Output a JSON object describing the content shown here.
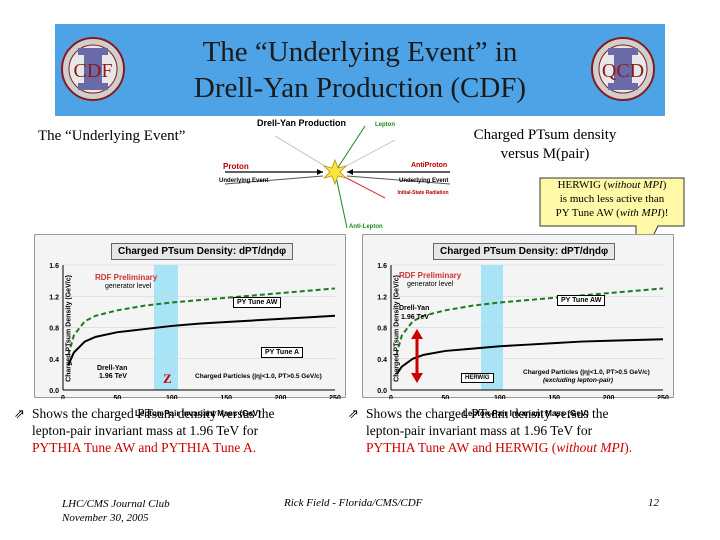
{
  "slide": {
    "title_line1": "The “Underlying Event” in",
    "title_line2": "Drell-Yan Production (CDF)",
    "logo_left_text": "CDF",
    "logo_right_text": "QCD",
    "left_heading": "The “Underlying Event”",
    "right_heading_line1": "Charged PTsum density",
    "right_heading_line2": "versus M(pair)"
  },
  "diagram": {
    "title": "Drell-Yan Production",
    "lepton": "Lepton",
    "proton": "Proton",
    "antiproton": "AntiProton",
    "ue_left": "Underlying Event",
    "ue_right": "Underlying Event",
    "isr": "Initial-State Radiation",
    "antilepton": "Anti-Lepton"
  },
  "callout": {
    "line1_a": "HERWIG (",
    "line1_i": "without MPI",
    "line1_b": ")",
    "line2": "is much less active than",
    "line3_a": "PY Tune AW (",
    "line3_i": "with MPI",
    "line3_b": ")!"
  },
  "charts": {
    "left": {
      "title": "Charged PTsum Density: dPT/dηdφ",
      "ylabel": "Charged PTsum Density (GeV/c)",
      "xlabel": "Lepton-Pair Invariant Mass (GeV)",
      "preliminary": "RDF Preliminary",
      "level": "generator level",
      "label_tune_aw": "PY Tune AW",
      "label_tune_a": "PY Tune A",
      "label_dy": "Drell-Yan",
      "label_energy": "1.96 TeV",
      "cuts": "Charged Particles (|η|<1.0, PT>0.5 GeV/c)",
      "z_label": "Z"
    },
    "right": {
      "title": "Charged PTsum Density: dPT/dηdφ",
      "ylabel": "Charged PTsum Density (GeV/c)",
      "xlabel": "Lepton-Pair Invariant Mass (GeV)",
      "preliminary": "RDF Preliminary",
      "level": "generator level",
      "label_tune_aw": "PY Tune AW",
      "label_dy": "Drell-Yan",
      "label_energy": "1.96 TeV",
      "label_herwig": "HERWIG",
      "cuts": "Charged Particles (|η|<1.0, PT>0.5 GeV/c)",
      "cuts2": "(excluding lepton-pair)"
    }
  },
  "chart_data": [
    {
      "type": "line",
      "title": "Charged PTsum Density: dPT/dηdφ",
      "xlabel": "Lepton-Pair Invariant Mass (GeV)",
      "ylabel": "Charged PTsum Density (GeV/c)",
      "xlim": [
        0,
        250
      ],
      "ylim": [
        0.0,
        1.6
      ],
      "xticks": [
        "0",
        "50",
        "100",
        "150",
        "200",
        "250"
      ],
      "yticks": [
        "0.0",
        "0.4",
        "0.8",
        "1.2",
        "1.6"
      ],
      "x": [
        5,
        10,
        20,
        30,
        50,
        75,
        100,
        125,
        150,
        175,
        200,
        225,
        250
      ],
      "series": [
        {
          "name": "PY Tune AW",
          "values": [
            0.45,
            0.7,
            0.88,
            0.95,
            1.02,
            1.08,
            1.12,
            1.15,
            1.18,
            1.21,
            1.24,
            1.27,
            1.3
          ]
        },
        {
          "name": "PY Tune A",
          "values": [
            0.32,
            0.48,
            0.62,
            0.68,
            0.74,
            0.78,
            0.82,
            0.85,
            0.87,
            0.89,
            0.91,
            0.93,
            0.95
          ]
        }
      ]
    },
    {
      "type": "line",
      "title": "Charged PTsum Density: dPT/dηdφ",
      "xlabel": "Lepton-Pair Invariant Mass (GeV)",
      "ylabel": "Charged PTsum Density (GeV/c)",
      "xlim": [
        0,
        250
      ],
      "ylim": [
        0.0,
        1.6
      ],
      "xticks": [
        "0",
        "50",
        "100",
        "150",
        "200",
        "250"
      ],
      "yticks": [
        "0.0",
        "0.4",
        "0.8",
        "1.2",
        "1.6"
      ],
      "x": [
        5,
        10,
        20,
        30,
        50,
        75,
        100,
        125,
        150,
        175,
        200,
        225,
        250
      ],
      "series": [
        {
          "name": "PY Tune AW",
          "values": [
            0.45,
            0.7,
            0.88,
            0.95,
            1.02,
            1.08,
            1.12,
            1.15,
            1.18,
            1.21,
            1.24,
            1.27,
            1.3
          ]
        },
        {
          "name": "HERWIG",
          "values": [
            0.2,
            0.3,
            0.4,
            0.45,
            0.5,
            0.53,
            0.56,
            0.58,
            0.6,
            0.62,
            0.63,
            0.64,
            0.65
          ]
        }
      ]
    }
  ],
  "bullets": {
    "left_l1": "Shows the charged PTsum density versus the",
    "left_l2": "lepton-pair invariant mass at 1.96 TeV for",
    "left_l3": "PYTHIA Tune AW and PYTHIA Tune A.",
    "right_l1": "Shows the charged PTsum density versus the",
    "right_l2": "lepton-pair invariant mass at 1.96 TeV for",
    "right_l3a": "PYTHIA Tune AW and HERWIG (",
    "right_l3i": "without MPI",
    "right_l3b": ")."
  },
  "footer": {
    "left_l1": "LHC/CMS Journal Club",
    "left_l2": "November 30, 2005",
    "center": "Rick Field - Florida/CMS/CDF",
    "page": "12"
  },
  "colors": {
    "banner": "#4da3e6",
    "tune_aw": "#1e7a1e",
    "tune_a": "#000000",
    "herwig": "#000000",
    "highlight_band": "#a8e4f5",
    "callout_bg": "#fff9a8",
    "red": "#cc0000"
  }
}
